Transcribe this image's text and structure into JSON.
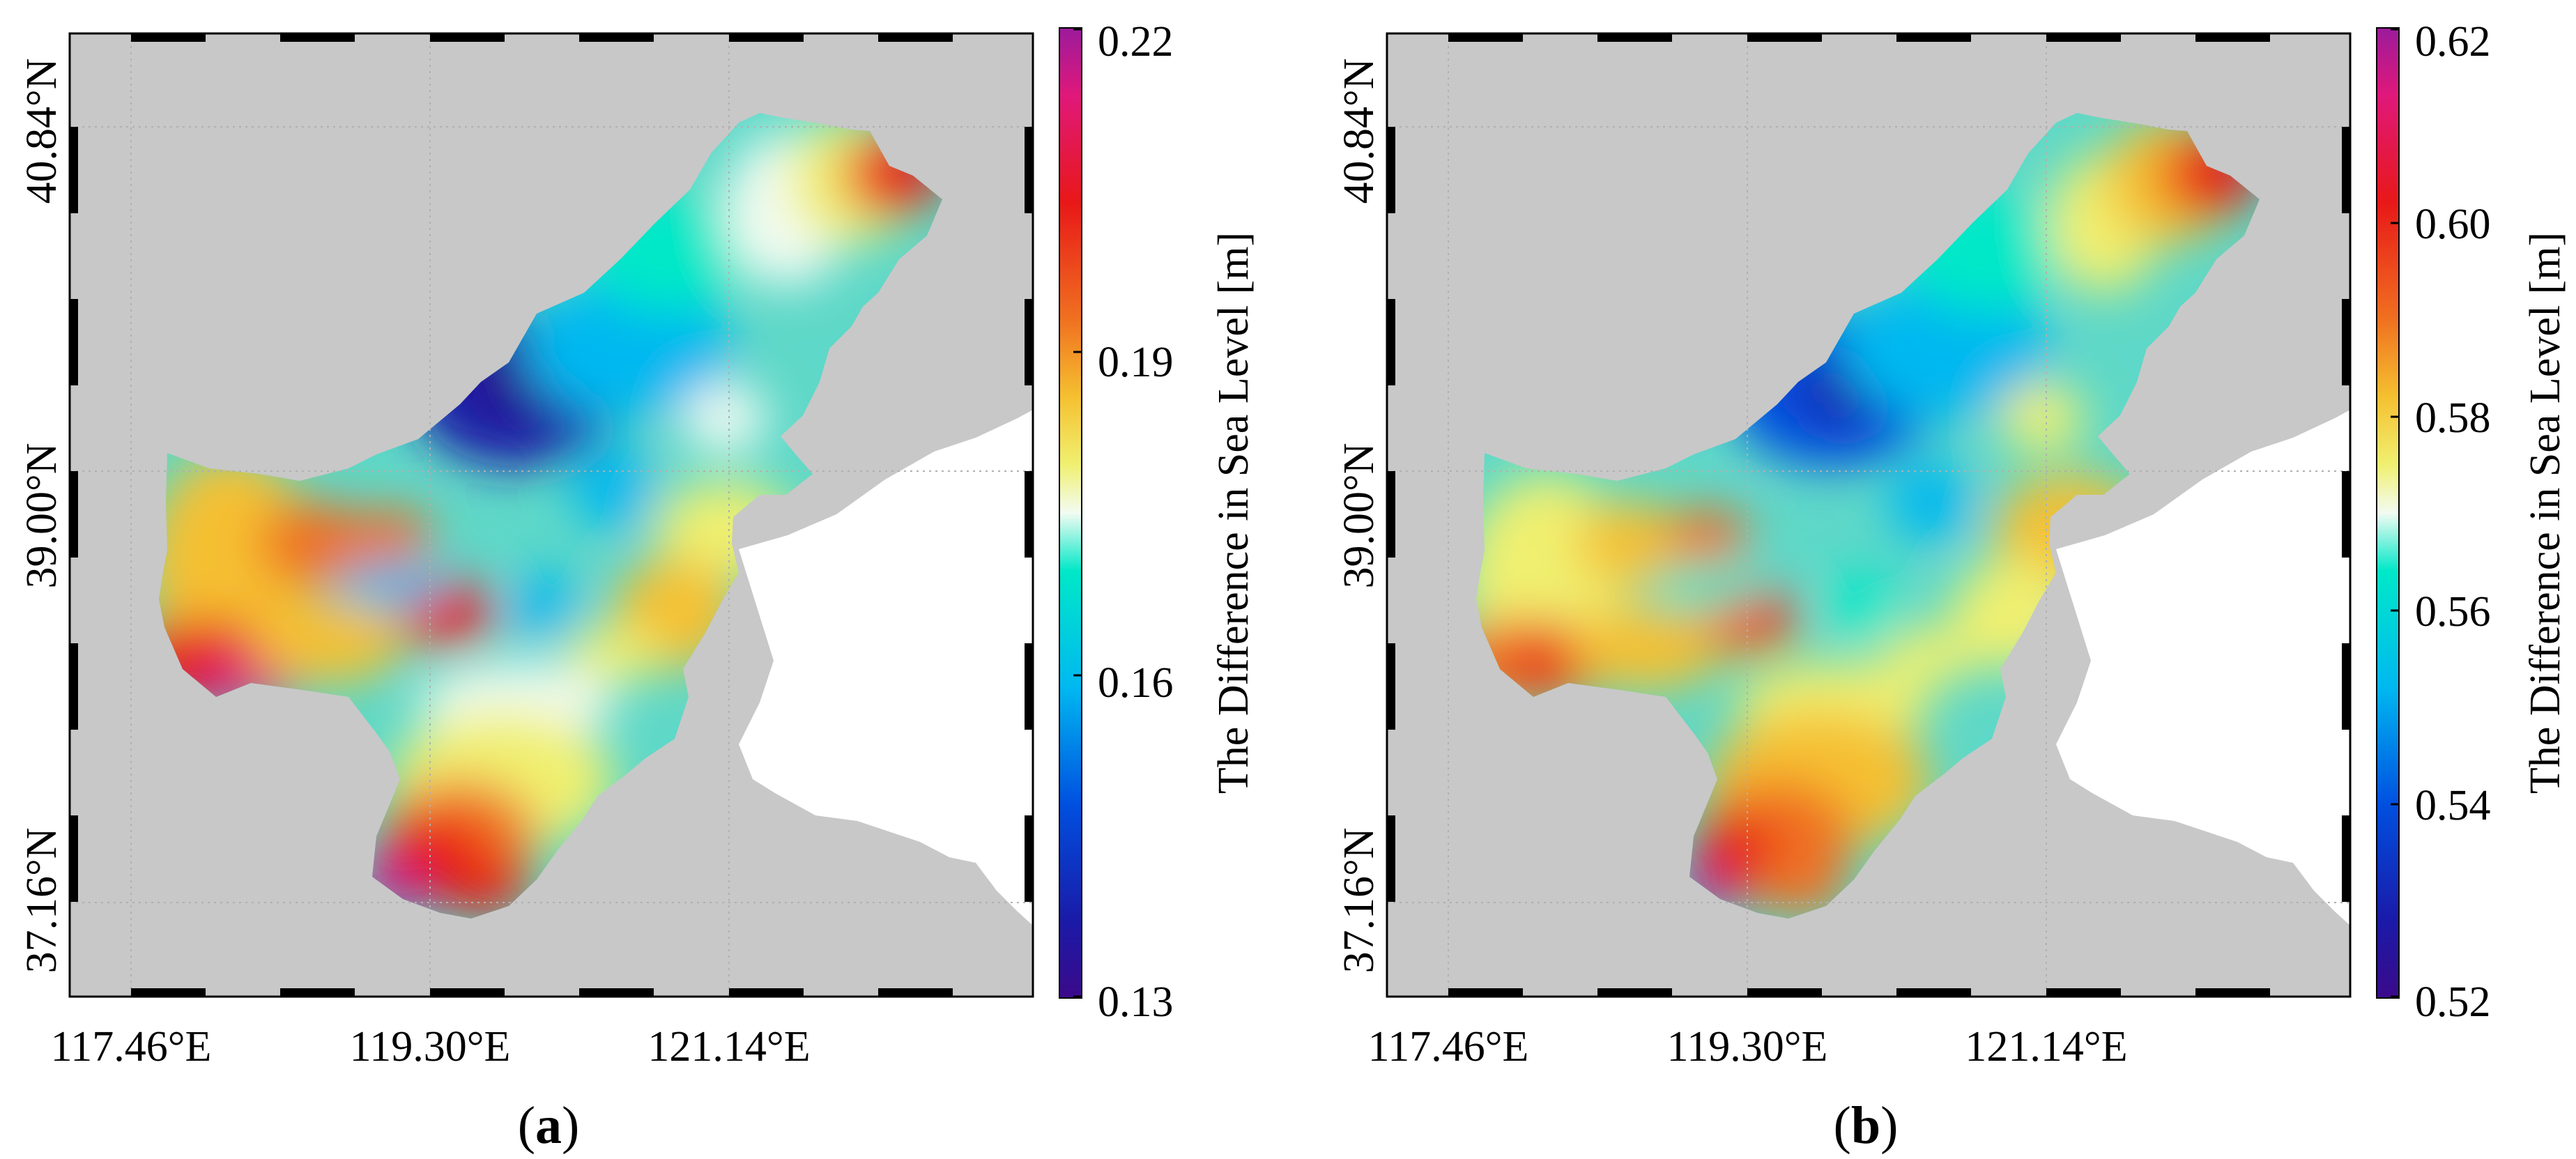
{
  "figure": {
    "panels": [
      {
        "id": "a",
        "caption": "a",
        "x_ticks": [
          "117.46°E",
          "119.30°E",
          "121.14°E"
        ],
        "y_ticks": [
          "37.16°N",
          "39.00°N",
          "40.84°N"
        ],
        "colorbar": {
          "label": "The Difference in Sea Level [m]",
          "ticks": [
            "0.22",
            "0.19",
            "0.16",
            "0.13"
          ],
          "min": 0.13,
          "max": 0.22
        }
      },
      {
        "id": "b",
        "caption": "b",
        "x_ticks": [
          "117.46°E",
          "119.30°E",
          "121.14°E"
        ],
        "y_ticks": [
          "37.16°N",
          "39.00°N",
          "40.84°N"
        ],
        "colorbar": {
          "label": "The Difference in Sea Level [m]",
          "ticks": [
            "0.62",
            "0.60",
            "0.58",
            "0.56",
            "0.54",
            "0.52"
          ],
          "min": 0.52,
          "max": 0.62
        }
      }
    ],
    "colors": {
      "land": "#c8c8c8",
      "outside": "#ffffff",
      "colormap": [
        "#3b0a8a",
        "#1a1aa8",
        "#0050e0",
        "#00b8f0",
        "#00e8c8",
        "#f2fbf2",
        "#f0f070",
        "#f5c030",
        "#f07020",
        "#e81818",
        "#e0187a",
        "#9c1a9c"
      ]
    }
  }
}
